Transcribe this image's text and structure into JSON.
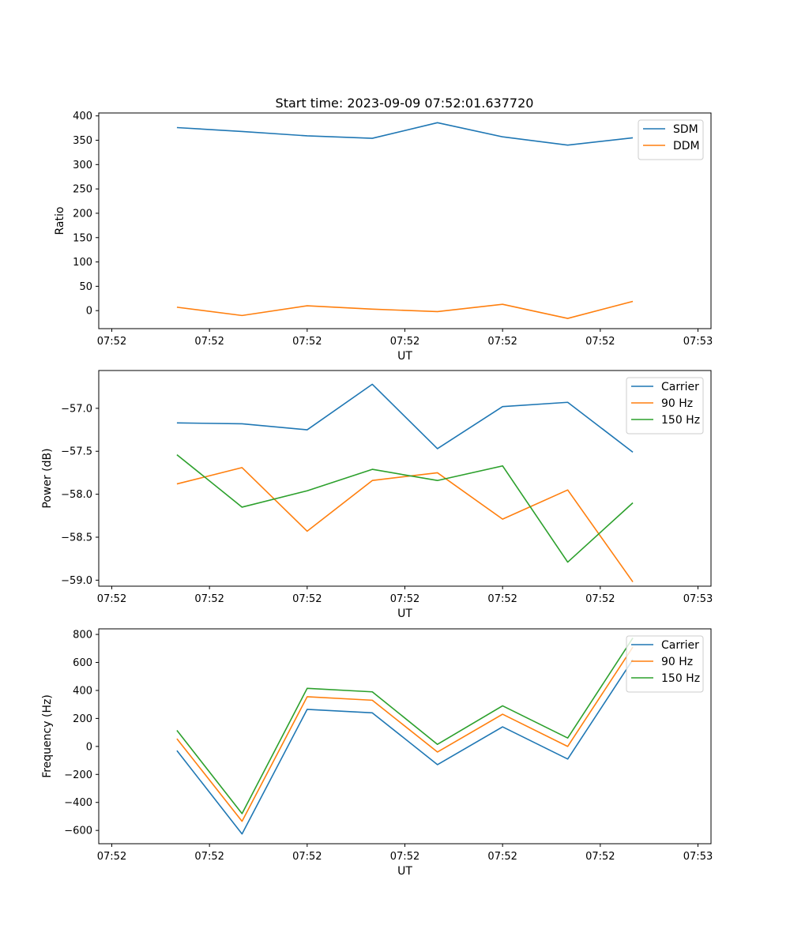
{
  "figure_title": "Start time: 2023-09-09 07:52:01.637720",
  "chart_data": [
    {
      "type": "line",
      "title": "Start time: 2023-09-09 07:52:01.637720",
      "xlabel": "UT",
      "ylabel": "Ratio",
      "x": [
        0.5,
        1,
        1.5,
        2,
        2.5,
        3,
        3.5,
        4
      ],
      "xlim": [
        -0.1,
        4.6
      ],
      "xticks": [
        0,
        0.75,
        1.5,
        2.25,
        3,
        3.75,
        4.5
      ],
      "xtick_labels": [
        "07:52",
        "07:52",
        "07:52",
        "07:52",
        "07:52",
        "07:52",
        "07:53"
      ],
      "ylim": [
        -37,
        406
      ],
      "yticks": [
        0,
        50,
        100,
        150,
        200,
        250,
        300,
        350,
        400
      ],
      "ytick_labels": [
        "0",
        "50",
        "100",
        "150",
        "200",
        "250",
        "300",
        "350",
        "400"
      ],
      "legend_position": "top-right",
      "grid": false,
      "series": [
        {
          "name": "SDM",
          "color": "#1f77b4",
          "values": [
            376,
            368,
            359,
            354,
            386,
            357,
            340,
            355
          ]
        },
        {
          "name": "DDM",
          "color": "#ff7f0e",
          "values": [
            7,
            -10,
            10,
            3,
            -2,
            13,
            -16,
            19
          ]
        }
      ]
    },
    {
      "type": "line",
      "title": "",
      "xlabel": "UT",
      "ylabel": "Power (dB)",
      "x": [
        0.5,
        1,
        1.5,
        2,
        2.5,
        3,
        3.5,
        4
      ],
      "xlim": [
        -0.1,
        4.6
      ],
      "xticks": [
        0,
        0.75,
        1.5,
        2.25,
        3,
        3.75,
        4.5
      ],
      "xtick_labels": [
        "07:52",
        "07:52",
        "07:52",
        "07:52",
        "07:52",
        "07:52",
        "07:53"
      ],
      "ylim": [
        -59.07,
        -56.56
      ],
      "yticks": [
        -59.0,
        -58.5,
        -58.0,
        -57.5,
        -57.0
      ],
      "ytick_labels": [
        "−59.0",
        "−58.5",
        "−58.0",
        "−57.5",
        "−57.0"
      ],
      "legend_position": "top-right",
      "grid": false,
      "series": [
        {
          "name": "Carrier",
          "color": "#1f77b4",
          "values": [
            -57.17,
            -57.18,
            -57.25,
            -56.72,
            -57.47,
            -56.98,
            -56.93,
            -57.51
          ]
        },
        {
          "name": "90 Hz",
          "color": "#ff7f0e",
          "values": [
            -57.88,
            -57.69,
            -58.43,
            -57.84,
            -57.75,
            -58.29,
            -57.95,
            -59.02
          ]
        },
        {
          "name": "150 Hz",
          "color": "#2ca02c",
          "values": [
            -57.54,
            -58.15,
            -57.96,
            -57.71,
            -57.84,
            -57.67,
            -58.79,
            -58.1
          ]
        }
      ]
    },
    {
      "type": "line",
      "title": "",
      "xlabel": "UT",
      "ylabel": "Frequency (Hz)",
      "x": [
        0.5,
        1,
        1.5,
        2,
        2.5,
        3,
        3.5,
        4
      ],
      "xlim": [
        -0.1,
        4.6
      ],
      "xticks": [
        0,
        0.75,
        1.5,
        2.25,
        3,
        3.75,
        4.5
      ],
      "xtick_labels": [
        "07:52",
        "07:52",
        "07:52",
        "07:52",
        "07:52",
        "07:52",
        "07:53"
      ],
      "ylim": [
        -695,
        840
      ],
      "yticks": [
        -600,
        -400,
        -200,
        0,
        200,
        400,
        600,
        800
      ],
      "ytick_labels": [
        "−600",
        "−400",
        "−200",
        "0",
        "200",
        "400",
        "600",
        "800"
      ],
      "legend_position": "top-right",
      "grid": false,
      "series": [
        {
          "name": "Carrier",
          "color": "#1f77b4",
          "values": [
            -30,
            -625,
            265,
            240,
            -130,
            140,
            -90,
            620
          ]
        },
        {
          "name": "90 Hz",
          "color": "#ff7f0e",
          "values": [
            55,
            -535,
            355,
            330,
            -40,
            230,
            0,
            710
          ]
        },
        {
          "name": "150 Hz",
          "color": "#2ca02c",
          "values": [
            115,
            -480,
            415,
            390,
            15,
            290,
            60,
            775
          ]
        }
      ]
    }
  ]
}
